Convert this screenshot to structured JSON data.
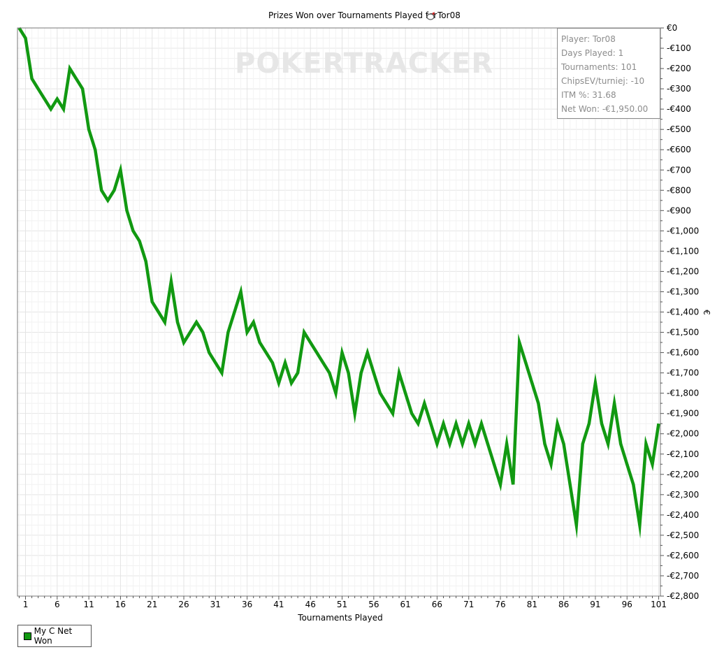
{
  "chart_data": {
    "type": "line",
    "title": "Prizes Won over Tournaments Played for",
    "title_player": "Tor08",
    "xlabel": "Tournaments Played",
    "ylabel": "€",
    "x_ticks": [
      "1",
      "6",
      "11",
      "16",
      "21",
      "26",
      "31",
      "36",
      "41",
      "46",
      "51",
      "56",
      "61",
      "66",
      "71",
      "76",
      "81",
      "86",
      "91",
      "96",
      "101"
    ],
    "y_ticks": [
      "€0",
      "-€100",
      "-€200",
      "-€300",
      "-€400",
      "-€500",
      "-€600",
      "-€700",
      "-€800",
      "-€900",
      "-€1,000",
      "-€1,100",
      "-€1,200",
      "-€1,300",
      "-€1,400",
      "-€1,500",
      "-€1,600",
      "-€1,700",
      "-€1,800",
      "-€1,900",
      "-€2,000",
      "-€2,100",
      "-€2,200",
      "-€2,300",
      "-€2,400",
      "-€2,500",
      "-€2,600",
      "-€2,700",
      "-€2,800"
    ],
    "xlim": [
      0,
      101
    ],
    "ylim": [
      -2800,
      0
    ],
    "grid": true,
    "legend_position": "bottom-left",
    "series": [
      {
        "name": "My C Net Won",
        "color": "#119911",
        "x": [
          0,
          1,
          2,
          3,
          4,
          5,
          6,
          7,
          8,
          9,
          10,
          11,
          12,
          13,
          14,
          15,
          16,
          17,
          18,
          19,
          20,
          21,
          22,
          23,
          24,
          25,
          26,
          27,
          28,
          29,
          30,
          31,
          32,
          33,
          34,
          35,
          36,
          37,
          38,
          39,
          40,
          41,
          42,
          43,
          44,
          45,
          46,
          47,
          48,
          49,
          50,
          51,
          52,
          53,
          54,
          55,
          56,
          57,
          58,
          59,
          60,
          61,
          62,
          63,
          64,
          65,
          66,
          67,
          68,
          69,
          70,
          71,
          72,
          73,
          74,
          75,
          76,
          77,
          78,
          79,
          80,
          81,
          82,
          83,
          84,
          85,
          86,
          87,
          88,
          89,
          90,
          91,
          92,
          93,
          94,
          95,
          96,
          97,
          98,
          99,
          100,
          101
        ],
        "values": [
          0,
          -50,
          -250,
          -300,
          -350,
          -400,
          -350,
          -400,
          -200,
          -250,
          -300,
          -500,
          -600,
          -800,
          -850,
          -800,
          -700,
          -900,
          -1000,
          -1050,
          -1150,
          -1350,
          -1400,
          -1450,
          -1250,
          -1450,
          -1550,
          -1500,
          -1450,
          -1500,
          -1600,
          -1650,
          -1700,
          -1500,
          -1400,
          -1300,
          -1500,
          -1450,
          -1550,
          -1600,
          -1650,
          -1750,
          -1650,
          -1750,
          -1700,
          -1500,
          -1550,
          -1600,
          -1650,
          -1700,
          -1800,
          -1600,
          -1700,
          -1900,
          -1700,
          -1600,
          -1700,
          -1800,
          -1850,
          -1900,
          -1700,
          -1800,
          -1900,
          -1950,
          -1850,
          -1950,
          -2050,
          -1950,
          -2050,
          -1950,
          -2050,
          -1950,
          -2050,
          -1950,
          -2050,
          -2150,
          -2250,
          -2050,
          -2250,
          -1550,
          -1650,
          -1750,
          -1850,
          -2050,
          -2150,
          -1950,
          -2050,
          -2250,
          -2450,
          -2050,
          -1950,
          -1750,
          -1950,
          -2050,
          -1850,
          -2050,
          -2150,
          -2250,
          -2450,
          -2050,
          -2150,
          -1950
        ]
      }
    ]
  },
  "info_box": {
    "player": "Player: Tor08",
    "days_played": "Days Played: 1",
    "tournaments": "Tournaments: 101",
    "chips_ev": "ChipsEV/turniej: -10",
    "itm": "ITM %: 31.68",
    "net_won": "Net Won: -€1,950.00"
  },
  "watermark": "POKERTRACKER",
  "legend": {
    "label": "My C Net Won"
  }
}
